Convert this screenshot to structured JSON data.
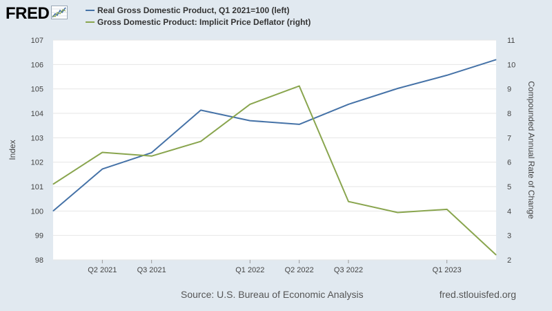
{
  "brand": {
    "name": "FRED",
    "icon": "fred-line-chart-icon"
  },
  "legend": [
    {
      "label": "Real Gross Domestic Product, Q1 2021=100 (left)",
      "color": "#4572a7"
    },
    {
      "label": "Gross Domestic Product: Implicit Price Deflator (right)",
      "color": "#89a54e"
    }
  ],
  "footer": {
    "source": "Source: U.S. Bureau of Economic Analysis",
    "site": "fred.stlouisfed.org"
  },
  "colors": {
    "background": "#e1e9f0",
    "plot": "#ffffff",
    "grid": "#e6e6e6"
  },
  "chart_data": {
    "type": "line",
    "x": [
      "Q1 2021",
      "Q2 2021",
      "Q3 2021",
      "Q4 2021",
      "Q1 2022",
      "Q2 2022",
      "Q3 2022",
      "Q4 2022",
      "Q1 2023",
      "Q2 2023"
    ],
    "x_tick_labels": [
      "Q2 2021",
      "Q3 2021",
      "Q1 2022",
      "Q2 2022",
      "Q3 2022",
      "Q1 2023"
    ],
    "series": [
      {
        "name": "Real Gross Domestic Product, Q1 2021=100 (left)",
        "axis": "left",
        "color": "#4572a7",
        "values": [
          100.0,
          101.72,
          102.39,
          104.13,
          103.7,
          103.55,
          104.37,
          105.02,
          105.56,
          106.2
        ]
      },
      {
        "name": "Gross Domestic Product: Implicit Price Deflator (right)",
        "axis": "right",
        "color": "#89a54e",
        "values": [
          5.1,
          6.4,
          6.25,
          6.85,
          8.37,
          9.12,
          4.39,
          3.94,
          4.07,
          2.2
        ]
      }
    ],
    "ylabel_left": "Index",
    "ylabel_right": "Compounded Annual Rate of Change",
    "ylim_left": [
      98,
      107
    ],
    "ylim_right": [
      2,
      11
    ],
    "yticks_left": [
      98,
      99,
      100,
      101,
      102,
      103,
      104,
      105,
      106,
      107
    ],
    "yticks_right": [
      2,
      3,
      4,
      5,
      6,
      7,
      8,
      9,
      10,
      11
    ],
    "grid": true,
    "legend_position": "top"
  }
}
